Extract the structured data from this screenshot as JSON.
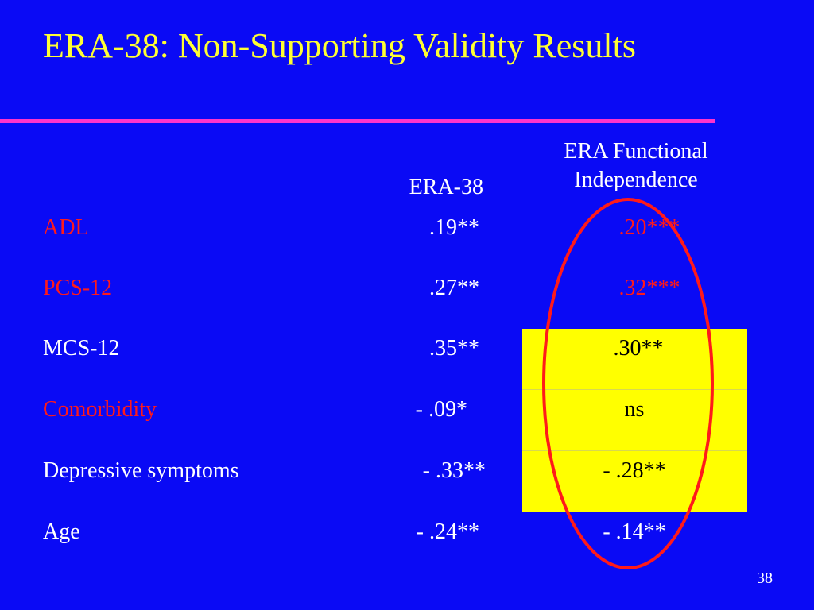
{
  "slide": {
    "title": "ERA-38: Non-Supporting Validity Results",
    "page_number": "38",
    "colors": {
      "background": "#0a0af5",
      "title": "#ffff33",
      "title_rule": "#ff33cc",
      "label_red": "#ff1a1a",
      "highlight": "#ffff00",
      "oval": "#ff1a1a"
    }
  },
  "table": {
    "headers": {
      "era38": "ERA-38",
      "functional_line1": "ERA Functional",
      "functional_line2": "Independence"
    },
    "rows": [
      {
        "label": "ADL",
        "era38": ".19**",
        "functional": ".20***"
      },
      {
        "label": "PCS-12",
        "era38": ".27**",
        "functional": ".32***"
      },
      {
        "label": "MCS-12",
        "era38": ".35**",
        "functional": ".30**"
      },
      {
        "label": "Comorbidity",
        "era38": "- .09*",
        "functional": "ns"
      },
      {
        "label": "Depressive symptoms",
        "era38": "- .33**",
        "functional": "- .28**"
      },
      {
        "label": "Age",
        "era38": "- .24**",
        "functional": "- .14**"
      }
    ]
  }
}
